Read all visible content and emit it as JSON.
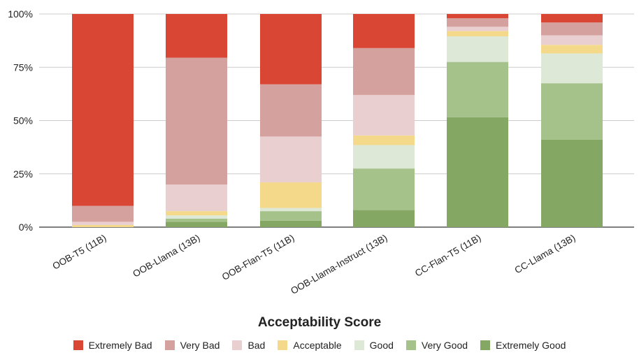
{
  "chart_data": {
    "type": "bar",
    "stacked": true,
    "title": "",
    "xlabel": "Acceptability Score",
    "ylabel": "",
    "ylim": [
      0,
      100
    ],
    "yticks": [
      "0%",
      "25%",
      "50%",
      "75%",
      "100%"
    ],
    "grid": true,
    "legend_position": "bottom",
    "categories": [
      "OOB-T5 (11B)",
      "OOB-Llama (13B)",
      "OOB-Flan-T5 (11B)",
      "OOB-Llama-Instruct (13B)",
      "CC-Flan-T5 (11B)",
      "CC-Llama (13B)"
    ],
    "series": [
      {
        "name": "Extremely Good",
        "color": "#84a764",
        "values": [
          0,
          2.5,
          3,
          8,
          51.5,
          41
        ]
      },
      {
        "name": "Very Good",
        "color": "#a4c28a",
        "values": [
          0,
          1.5,
          4.5,
          19.5,
          26,
          26.5
        ]
      },
      {
        "name": "Good",
        "color": "#dde8d7",
        "values": [
          0,
          1.5,
          1.5,
          11,
          12,
          14
        ]
      },
      {
        "name": "Acceptable",
        "color": "#f4d98a",
        "values": [
          1,
          2,
          12,
          4.5,
          2.5,
          4
        ]
      },
      {
        "name": "Bad",
        "color": "#eacfd0",
        "values": [
          1.5,
          12.5,
          21.5,
          19,
          2,
          4.5
        ]
      },
      {
        "name": "Very Bad",
        "color": "#d5a19e",
        "values": [
          7.5,
          59.5,
          24.5,
          22,
          4,
          6
        ]
      },
      {
        "name": "Extremely Bad",
        "color": "#d94734",
        "values": [
          90,
          20.5,
          33,
          16,
          2,
          4
        ]
      }
    ],
    "legend_order": [
      "Extremely Bad",
      "Very Bad",
      "Bad",
      "Acceptable",
      "Good",
      "Very Good",
      "Extremely Good"
    ]
  }
}
